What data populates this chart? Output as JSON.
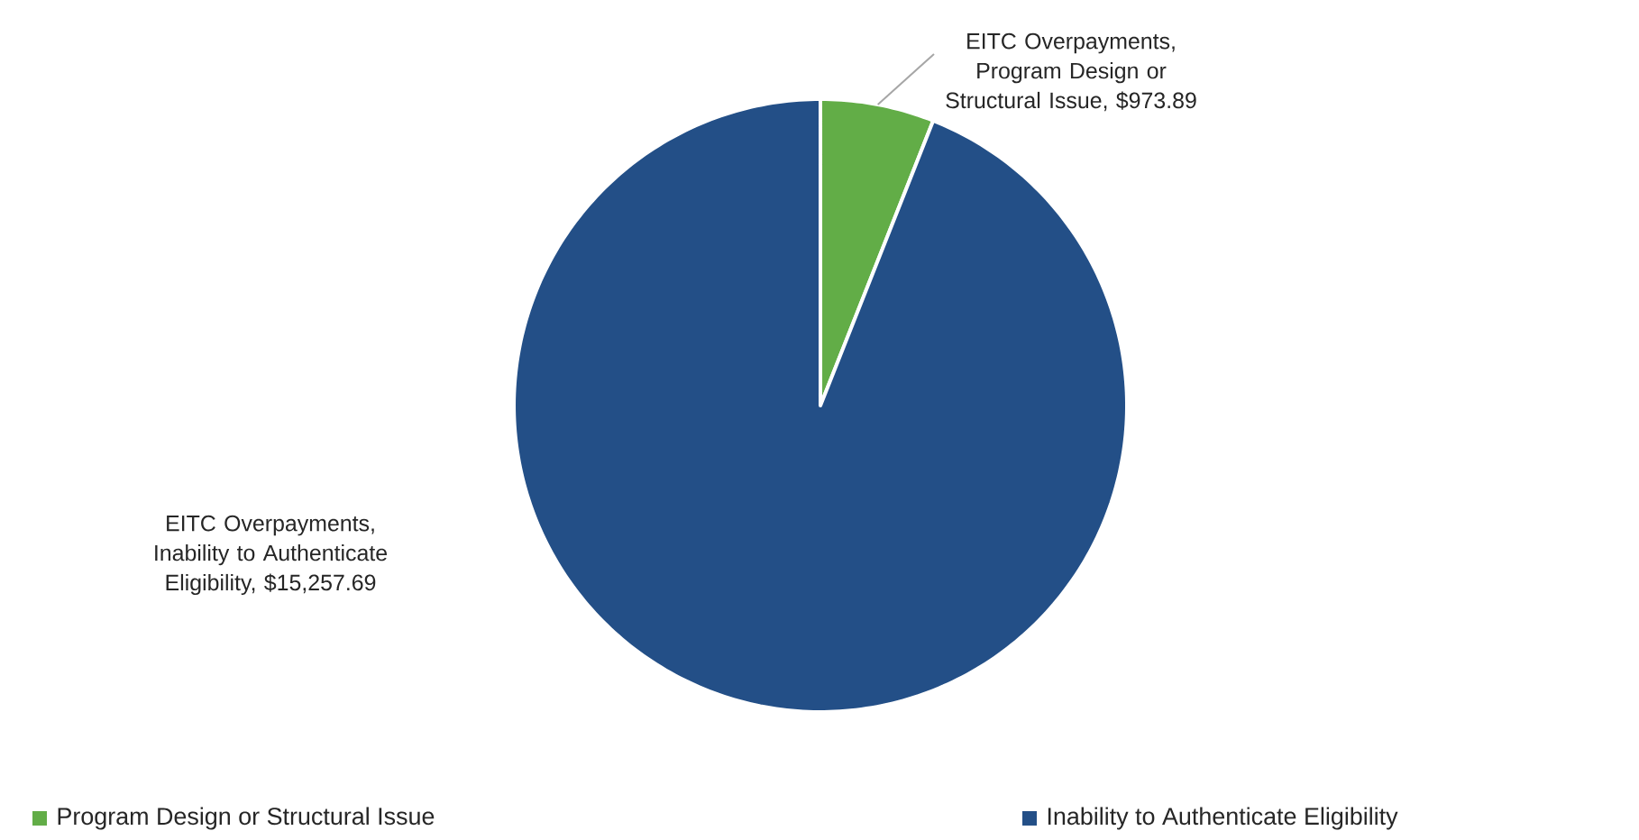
{
  "chart_data": {
    "type": "pie",
    "categories": [
      "Program Design or Structural Issue",
      "Inability to Authenticate Eligibility"
    ],
    "values": [
      973.89,
      15257.69
    ],
    "value_labels": [
      "EITC Overpayments, Program Design or Structural Issue, $973.89",
      "EITC Overpayments, Inability to Authenticate Eligibility, $15,257.69"
    ],
    "colors": [
      "#62ad47",
      "#234f87"
    ],
    "legend": "bottom"
  }
}
